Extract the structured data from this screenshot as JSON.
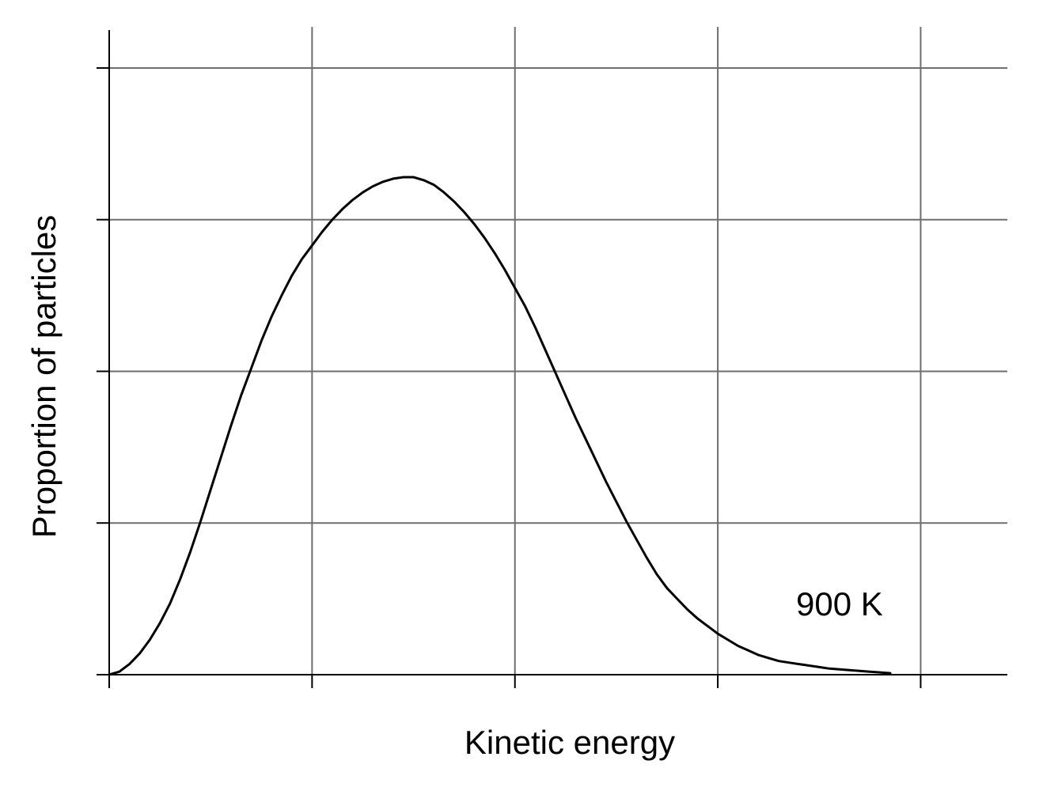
{
  "chart_data": {
    "type": "line",
    "title": "",
    "xlabel": "Kinetic energy",
    "ylabel": "Proportion of particles",
    "xlim": [
      0,
      4.4
    ],
    "ylim": [
      0,
      4.25
    ],
    "grid": true,
    "x_gridlines": [
      1,
      2,
      3,
      4
    ],
    "y_gridlines": [
      1,
      2,
      3,
      4
    ],
    "show_tick_labels": false,
    "series": [
      {
        "name": "900 K",
        "label_at": {
          "x": 3.6,
          "y": 0.45
        },
        "x": [
          0.0,
          0.05,
          0.1,
          0.15,
          0.2,
          0.25,
          0.3,
          0.35,
          0.4,
          0.45,
          0.5,
          0.55,
          0.6,
          0.65,
          0.7,
          0.75,
          0.8,
          0.85,
          0.9,
          0.95,
          1.0,
          1.05,
          1.1,
          1.15,
          1.2,
          1.25,
          1.3,
          1.35,
          1.4,
          1.45,
          1.5,
          1.55,
          1.6,
          1.65,
          1.7,
          1.75,
          1.8,
          1.85,
          1.9,
          1.95,
          2.0,
          2.05,
          2.1,
          2.15,
          2.2,
          2.25,
          2.3,
          2.35,
          2.4,
          2.45,
          2.5,
          2.55,
          2.6,
          2.65,
          2.7,
          2.75,
          2.8,
          2.85,
          2.9,
          2.95,
          3.0,
          3.05,
          3.1,
          3.15,
          3.2,
          3.25,
          3.3,
          3.35,
          3.4,
          3.45,
          3.5,
          3.55,
          3.6,
          3.65,
          3.7,
          3.75,
          3.8,
          3.85
        ],
        "y": [
          0.0,
          0.02,
          0.07,
          0.14,
          0.23,
          0.34,
          0.47,
          0.63,
          0.81,
          1.01,
          1.22,
          1.43,
          1.64,
          1.84,
          2.02,
          2.2,
          2.36,
          2.5,
          2.63,
          2.74,
          2.83,
          2.92,
          3.0,
          3.07,
          3.13,
          3.18,
          3.22,
          3.25,
          3.27,
          3.28,
          3.28,
          3.26,
          3.23,
          3.18,
          3.12,
          3.05,
          2.97,
          2.88,
          2.78,
          2.67,
          2.55,
          2.43,
          2.29,
          2.14,
          1.99,
          1.84,
          1.69,
          1.55,
          1.41,
          1.27,
          1.14,
          1.01,
          0.89,
          0.77,
          0.66,
          0.57,
          0.5,
          0.43,
          0.37,
          0.32,
          0.27,
          0.23,
          0.19,
          0.16,
          0.13,
          0.11,
          0.09,
          0.08,
          0.07,
          0.06,
          0.05,
          0.04,
          0.035,
          0.03,
          0.025,
          0.02,
          0.015,
          0.01
        ]
      }
    ]
  }
}
